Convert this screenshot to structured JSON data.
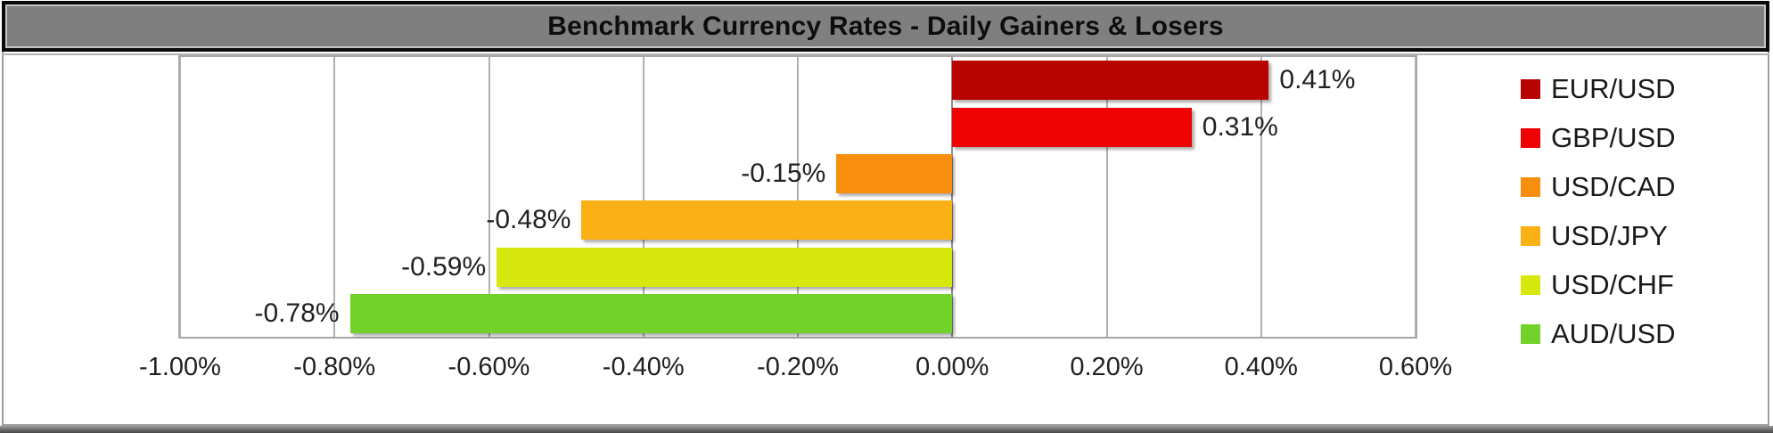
{
  "title": "Benchmark Currency Rates - Daily Gainers & Losers",
  "chart_data": {
    "type": "bar",
    "orientation": "horizontal",
    "title": "Benchmark Currency Rates - Daily Gainers & Losers",
    "categories": [
      "EUR/USD",
      "GBP/USD",
      "USD/CAD",
      "USD/JPY",
      "USD/CHF",
      "AUD/USD"
    ],
    "values": [
      0.41,
      0.31,
      -0.15,
      -0.48,
      -0.59,
      -0.78
    ],
    "data_labels": [
      "0.41%",
      "0.31%",
      "-0.15%",
      "-0.48%",
      "-0.59%",
      "-0.78%"
    ],
    "bar_colors": [
      "#b70400",
      "#ee0202",
      "#f78e0e",
      "#fab116",
      "#d7e80e",
      "#73d22a"
    ],
    "xlim": [
      -1.0,
      0.6
    ],
    "x_ticks": [
      {
        "label": "-1.00%",
        "value": -1.0
      },
      {
        "label": "-0.80%",
        "value": -0.8
      },
      {
        "label": "-0.60%",
        "value": -0.6
      },
      {
        "label": "-0.40%",
        "value": -0.4
      },
      {
        "label": "-0.20%",
        "value": -0.2
      },
      {
        "label": "0.00%",
        "value": 0.0
      },
      {
        "label": "0.20%",
        "value": 0.2
      },
      {
        "label": "0.40%",
        "value": 0.4
      },
      {
        "label": "0.60%",
        "value": 0.6
      }
    ],
    "grid": true,
    "legend_position": "right",
    "legend": [
      "EUR/USD",
      "GBP/USD",
      "USD/CAD",
      "USD/JPY",
      "USD/CHF",
      "AUD/USD"
    ]
  },
  "colors": {
    "title_bg": "#7f7f7f",
    "title_border": "#0a0a0a",
    "grid": "#b0b0b0",
    "zero_line": "#8c8c8c",
    "plot_border": "#a6a6a6",
    "outer_border": "#9e9e9e",
    "text": "#212121"
  }
}
